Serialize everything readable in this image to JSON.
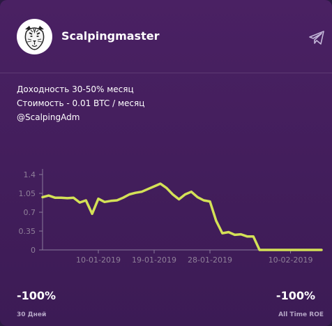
{
  "app": {
    "title": "Scalpingmaster"
  },
  "description": [
    "Доходность 30-50% месяц",
    "Стоимость - 0.01 BTC / месяц",
    "@ScalpingAdm"
  ],
  "icons": {
    "avatar": "tiger-logo-icon",
    "action": "telegram-send-icon"
  },
  "colors": {
    "line": "#d4e157",
    "axis": "#8a7b9b",
    "tick_text": "#8f8099"
  },
  "chart_data": {
    "type": "line",
    "title": "",
    "xlabel": "",
    "ylabel": "",
    "ylim": [
      0,
      1.4
    ],
    "yticks": [
      0,
      0.35,
      0.7,
      1.05,
      1.4
    ],
    "ytick_labels": [
      "0",
      "0.35",
      "0.7",
      "1.05",
      "1.4"
    ],
    "xlim": [
      "2019-01-01",
      "2019-02-15"
    ],
    "xticks": [
      "2019-01-10",
      "2019-01-19",
      "2019-01-28",
      "2019-02-10"
    ],
    "xtick_labels": [
      "10-01-2019",
      "19-01-2019",
      "28-01-2019",
      "10-02-2019"
    ],
    "grid": false,
    "series": [
      {
        "x": [
          "2019-01-01",
          "2019-01-02",
          "2019-01-03",
          "2019-01-04",
          "2019-01-05",
          "2019-01-06",
          "2019-01-07",
          "2019-01-08",
          "2019-01-09",
          "2019-01-10",
          "2019-01-11",
          "2019-01-12",
          "2019-01-13",
          "2019-01-14",
          "2019-01-15",
          "2019-01-16",
          "2019-01-17",
          "2019-01-18",
          "2019-01-19",
          "2019-01-20",
          "2019-01-21",
          "2019-01-22",
          "2019-01-23",
          "2019-01-24",
          "2019-01-25",
          "2019-01-26",
          "2019-01-27",
          "2019-01-28",
          "2019-01-29",
          "2019-01-30",
          "2019-01-31",
          "2019-02-01",
          "2019-02-02",
          "2019-02-03",
          "2019-02-04",
          "2019-02-05",
          "2019-02-06",
          "2019-02-07",
          "2019-02-08",
          "2019-02-09",
          "2019-02-10",
          "2019-02-11",
          "2019-02-12",
          "2019-02-13",
          "2019-02-14",
          "2019-02-15"
        ],
        "values": [
          0.98,
          1.01,
          0.97,
          0.97,
          0.96,
          0.97,
          0.88,
          0.92,
          0.67,
          0.95,
          0.89,
          0.91,
          0.92,
          0.97,
          1.03,
          1.06,
          1.08,
          1.13,
          1.18,
          1.23,
          1.15,
          1.03,
          0.94,
          1.03,
          1.08,
          0.98,
          0.92,
          0.9,
          0.54,
          0.31,
          0.33,
          0.28,
          0.29,
          0.25,
          0.25,
          0.0,
          0.0,
          0.0,
          0.0,
          0.0,
          0.0,
          0.0,
          0.0,
          0.0,
          0.0,
          0.0
        ]
      }
    ]
  },
  "stats": [
    {
      "value": "-100%",
      "label": "30 Дней"
    },
    {
      "value": "-100%",
      "label": "All Time ROE"
    }
  ]
}
